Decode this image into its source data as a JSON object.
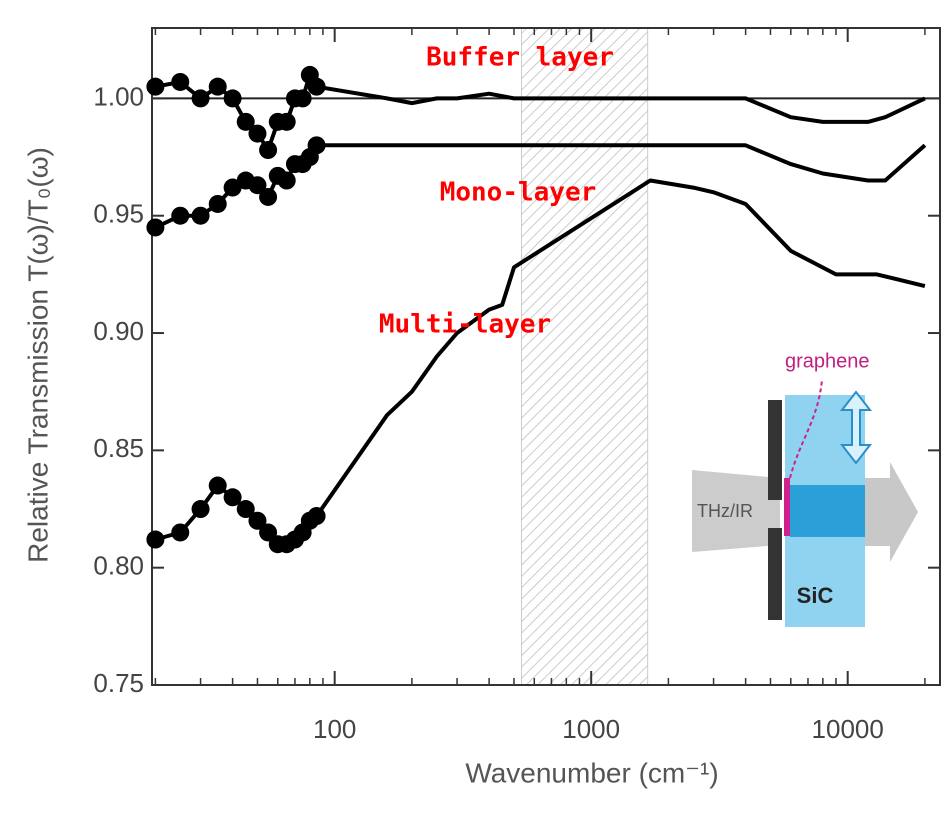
{
  "chart_data": {
    "type": "line",
    "xlabel": "Wavenumber (cm⁻¹)",
    "ylabel": "Relative Transmission T(ω)/T₀(ω)",
    "xscale": "log",
    "xlim": [
      19.4,
      22900
    ],
    "xticks": [
      100,
      1000,
      10000
    ],
    "ylim": [
      0.75,
      1.03
    ],
    "yticks": [
      0.75,
      {
        "value": 0.8,
        "label": "0.80"
      },
      0.85,
      {
        "value": 0.9,
        "label": "0.90"
      },
      0.95,
      {
        "value": 1.0,
        "label": "1.00"
      }
    ],
    "reference_line": 1.0,
    "shaded_region": [
      535,
      1660
    ],
    "series": [
      {
        "name": "Buffer layer",
        "color": "#000000",
        "x": [
          20,
          25,
          30,
          35,
          40,
          45,
          50,
          55,
          60,
          65,
          70,
          75,
          80,
          85,
          160,
          200,
          250,
          300,
          400,
          500,
          1700,
          2500,
          4000,
          6000,
          8000,
          12000,
          14000,
          20000
        ],
        "values": [
          1.005,
          1.007,
          1.0,
          1.005,
          1.0,
          0.99,
          0.985,
          0.978,
          0.99,
          0.99,
          1.0,
          1.0,
          1.01,
          1.005,
          1.0,
          0.998,
          1.0,
          1.0,
          1.002,
          1.0,
          1.0,
          1.0,
          1.0,
          0.992,
          0.99,
          0.99,
          0.992,
          1.0
        ]
      },
      {
        "name": "Mono-layer",
        "color": "#000000",
        "x": [
          20,
          25,
          30,
          35,
          40,
          45,
          50,
          55,
          60,
          65,
          70,
          75,
          80,
          85,
          160,
          200,
          250,
          300,
          400,
          500,
          1700,
          2500,
          4000,
          6000,
          8000,
          12000,
          14000,
          20000
        ],
        "values": [
          0.945,
          0.95,
          0.95,
          0.955,
          0.962,
          0.965,
          0.963,
          0.958,
          0.967,
          0.965,
          0.972,
          0.972,
          0.975,
          0.98,
          0.98,
          0.98,
          0.98,
          0.98,
          0.98,
          0.98,
          0.98,
          0.98,
          0.98,
          0.972,
          0.968,
          0.965,
          0.965,
          0.98
        ]
      },
      {
        "name": "Multi-layer",
        "color": "#000000",
        "x": [
          20,
          25,
          30,
          35,
          40,
          45,
          50,
          55,
          60,
          65,
          70,
          75,
          80,
          85,
          160,
          200,
          250,
          300,
          400,
          450,
          500,
          1700,
          2500,
          3000,
          4000,
          6000,
          9000,
          13000,
          20000
        ],
        "values": [
          0.812,
          0.815,
          0.825,
          0.835,
          0.83,
          0.825,
          0.82,
          0.815,
          0.81,
          0.81,
          0.812,
          0.815,
          0.82,
          0.822,
          0.865,
          0.875,
          0.89,
          0.9,
          0.91,
          0.912,
          0.928,
          0.965,
          0.962,
          0.96,
          0.955,
          0.935,
          0.925,
          0.925,
          0.92
        ]
      }
    ],
    "annotations": [
      "Buffer layer",
      "Mono-layer",
      "Multi-layer"
    ],
    "inset_labels": [
      "graphene",
      "THz/IR",
      "SiC"
    ]
  }
}
